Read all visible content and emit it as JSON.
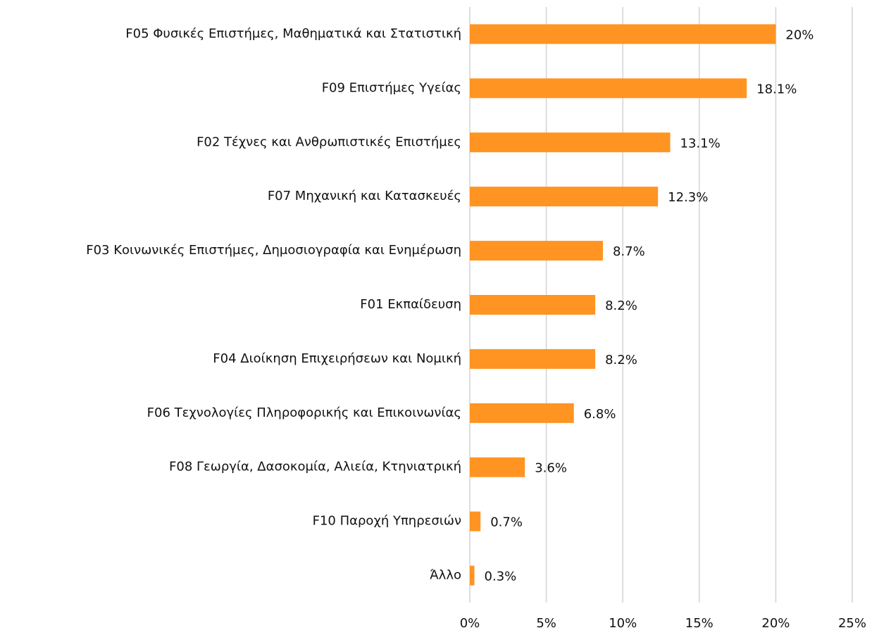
{
  "chart_data": {
    "type": "barh",
    "categories": [
      "F05 Φυσικές Επιστήμες, Μαθηματικά και Στατιστική",
      "F09 Επιστήμες Υγείας",
      "F02 Τέχνες και Ανθρωπιστικές Επιστήμες",
      "F07 Μηχανική και Κατασκευές",
      "F03 Κοινωνικές Επιστήμες, Δημοσιογραφία και Ενημέρωση",
      "F01 Εκπαίδευση",
      "F04 Διοίκηση Επιχειρήσεων και Νομική",
      "F06 Τεχνολογίες Πληροφορικής και Επικοινωνίας",
      "F08 Γεωργία, Δασοκομία, Αλιεία, Κτηνιατρική",
      "F10 Παροχή Υπηρεσιών",
      "Άλλο"
    ],
    "values": [
      20,
      18.1,
      13.1,
      12.3,
      8.7,
      8.2,
      8.2,
      6.8,
      3.6,
      0.7,
      0.3
    ],
    "value_labels": [
      "20%",
      "18.1%",
      "13.1%",
      "12.3%",
      "8.7%",
      "8.2%",
      "8.2%",
      "6.8%",
      "3.6%",
      "0.7%",
      "0.3%"
    ],
    "color": "#ff9422",
    "xlim": [
      0,
      25
    ],
    "xticks": [
      {
        "value": 0,
        "label": "0%"
      },
      {
        "value": 5,
        "label": "5%"
      },
      {
        "value": 10,
        "label": "10%"
      },
      {
        "value": 15,
        "label": "15%"
      },
      {
        "value": 20,
        "label": "20%"
      },
      {
        "value": 25,
        "label": "25%"
      }
    ],
    "grid": true
  }
}
